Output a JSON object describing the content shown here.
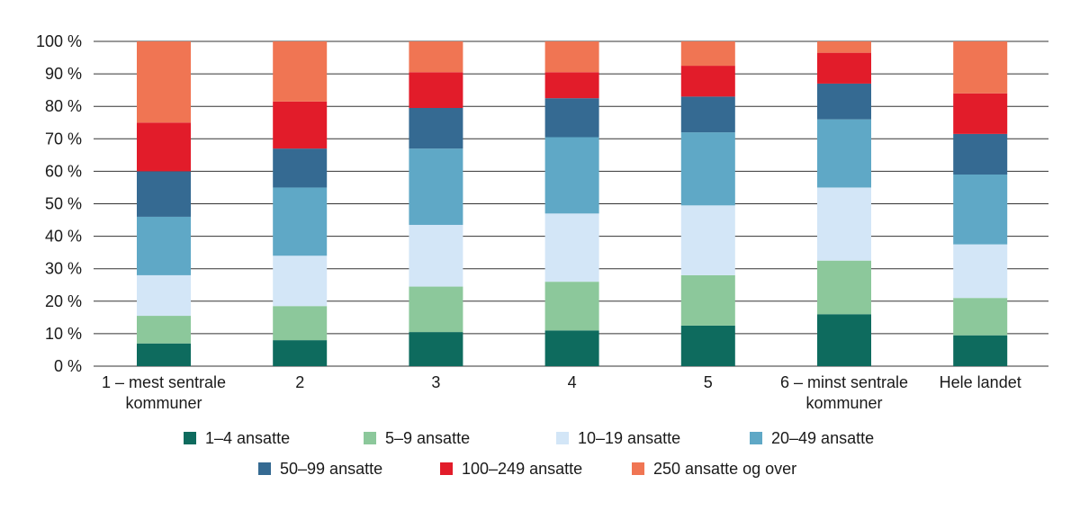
{
  "chart_data": {
    "type": "bar",
    "stacked": true,
    "title": "",
    "xlabel": "",
    "ylabel": "",
    "ylim": [
      0,
      100
    ],
    "yticks": [
      0,
      10,
      20,
      30,
      40,
      50,
      60,
      70,
      80,
      90,
      100
    ],
    "ytick_labels": [
      "0 %",
      "10 %",
      "20 %",
      "30 %",
      "40 %",
      "50 %",
      "60 %",
      "70 %",
      "80 %",
      "90 %",
      "100 %"
    ],
    "grid": true,
    "legend_position": "bottom",
    "categories": [
      [
        "1 – mest sentrale",
        "kommuner"
      ],
      [
        "2"
      ],
      [
        "3"
      ],
      [
        "4"
      ],
      [
        "5"
      ],
      [
        "6 – minst sentrale",
        "kommuner"
      ],
      [
        "Hele landet"
      ]
    ],
    "series": [
      {
        "name": "1–4 ansatte",
        "color": "#0e6b5e",
        "values": [
          7,
          8,
          10.5,
          11,
          12.5,
          16,
          9.5
        ]
      },
      {
        "name": "5–9 ansatte",
        "color": "#8cc89b",
        "values": [
          8.5,
          10.5,
          14,
          15,
          15.5,
          16.5,
          11.5
        ]
      },
      {
        "name": "10–19 ansatte",
        "color": "#d3e6f7",
        "values": [
          12.5,
          15.5,
          19,
          21,
          21.5,
          22.5,
          16.5
        ]
      },
      {
        "name": "20–49 ansatte",
        "color": "#5fa8c6",
        "values": [
          18,
          21,
          23.5,
          23.5,
          22.5,
          21,
          21.5
        ]
      },
      {
        "name": "50–99 ansatte",
        "color": "#356a92",
        "values": [
          14,
          12,
          12.5,
          12,
          11,
          11,
          12.5
        ]
      },
      {
        "name": "100–249 ansatte",
        "color": "#e21c2a",
        "values": [
          15,
          14.5,
          11,
          8,
          9.5,
          9.5,
          12.5
        ]
      },
      {
        "name": "250 ansatte og over",
        "color": "#f07553",
        "values": [
          25,
          18.5,
          9.5,
          9.5,
          7.5,
          3.5,
          16
        ]
      }
    ]
  }
}
